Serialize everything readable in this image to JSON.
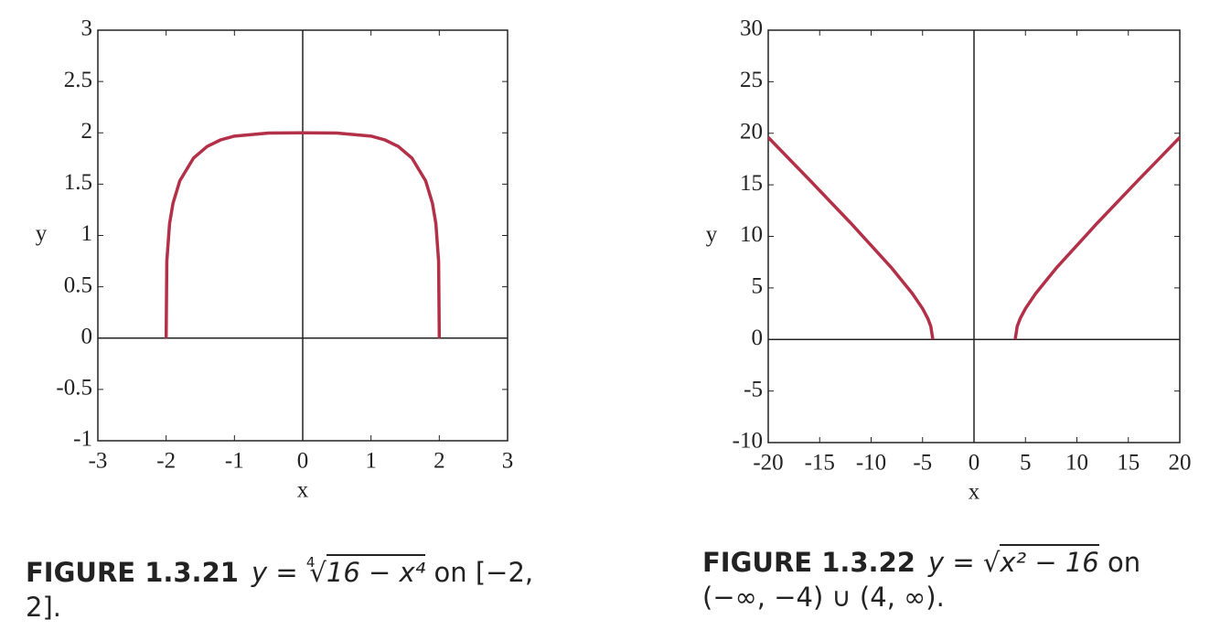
{
  "chart_data": [
    {
      "type": "line",
      "xlabel": "x",
      "ylabel": "y",
      "x": [
        -2,
        -1.99,
        -1.95,
        -1.9,
        -1.8,
        -1.6,
        -1.4,
        -1.2,
        -1,
        -0.5,
        0,
        0.5,
        1,
        1.2,
        1.4,
        1.6,
        1.8,
        1.9,
        1.95,
        1.99,
        2
      ],
      "series": [
        {
          "color": "#b23048",
          "values": [
            0,
            0.751,
            1.114,
            1.313,
            1.532,
            1.753,
            1.867,
            1.932,
            1.968,
            1.998,
            2,
            1.998,
            1.968,
            1.932,
            1.867,
            1.753,
            1.532,
            1.313,
            1.114,
            0.751,
            0
          ]
        }
      ],
      "xlim": [
        -3,
        3
      ],
      "ylim": [
        -1,
        3
      ],
      "xticks": [
        -3,
        -2,
        -1,
        0,
        1,
        2,
        3
      ],
      "yticks": [
        -1,
        -0.5,
        0,
        0.5,
        1,
        1.5,
        2,
        2.5,
        3
      ],
      "caption": {
        "figure": "FIGURE 1.3.21",
        "lhs": "y =",
        "root_index": "4",
        "radical": "√",
        "radicand": "16 − x⁴",
        "rest": "on [−2, 2]."
      }
    },
    {
      "type": "line",
      "xlabel": "x",
      "ylabel": "y",
      "x": [
        -20,
        -16,
        -12,
        -8,
        -6,
        -5,
        -4.5,
        -4.2,
        -4,
        0,
        4,
        4.2,
        4.5,
        5,
        6,
        8,
        12,
        16,
        20
      ],
      "series": [
        {
          "color": "#b23048",
          "values": [
            19.6,
            15.49,
            11.31,
            6.93,
            4.47,
            3,
            2.06,
            1.28,
            0,
            null,
            0,
            1.28,
            2.06,
            3,
            4.47,
            6.93,
            11.31,
            15.49,
            19.6
          ]
        }
      ],
      "xlim": [
        -20,
        20
      ],
      "ylim": [
        -10,
        30
      ],
      "xticks": [
        -20,
        -15,
        -10,
        -5,
        0,
        5,
        10,
        15,
        20
      ],
      "yticks": [
        -10,
        -5,
        0,
        5,
        10,
        15,
        20,
        25,
        30
      ],
      "caption": {
        "figure": "FIGURE 1.3.22",
        "lhs": "y =",
        "radical": "√",
        "radicand": "x² − 16",
        "rest": "on (−∞, −4) ∪ (4, ∞)."
      }
    }
  ]
}
